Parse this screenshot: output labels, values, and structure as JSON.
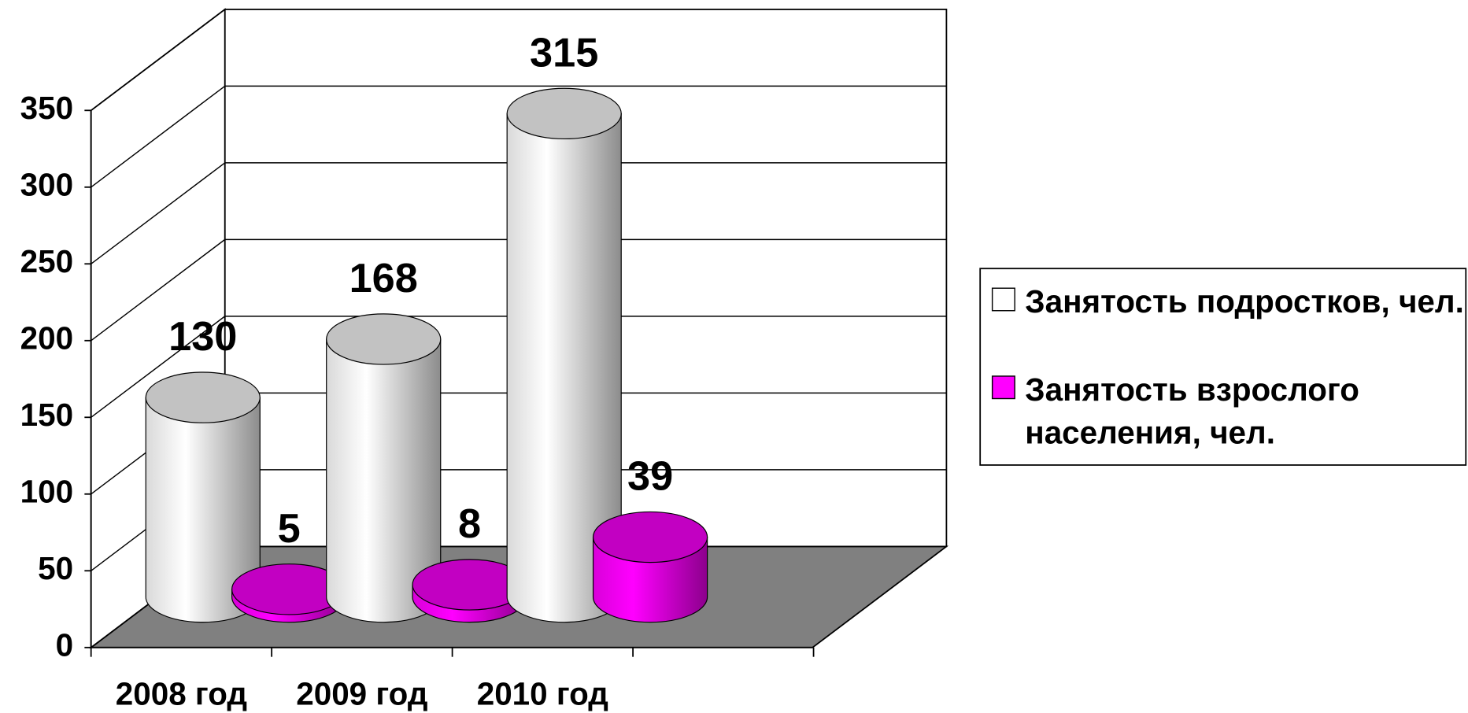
{
  "chart_data": {
    "type": "bar3d",
    "categories": [
      "2008 год",
      "2009 год",
      "2010 год"
    ],
    "series": [
      {
        "name": "Занятость подростков, чел.",
        "color": "#ffffff",
        "values": [
          130,
          168,
          315
        ]
      },
      {
        "name": "Занятость взрослого населения, чел.",
        "color": "#ff00ff",
        "values": [
          5,
          8,
          39
        ]
      }
    ],
    "ylim": [
      0,
      350
    ],
    "yticks": [
      0,
      50,
      100,
      150,
      200,
      250,
      300,
      350
    ],
    "grid": true,
    "legend": "right"
  }
}
